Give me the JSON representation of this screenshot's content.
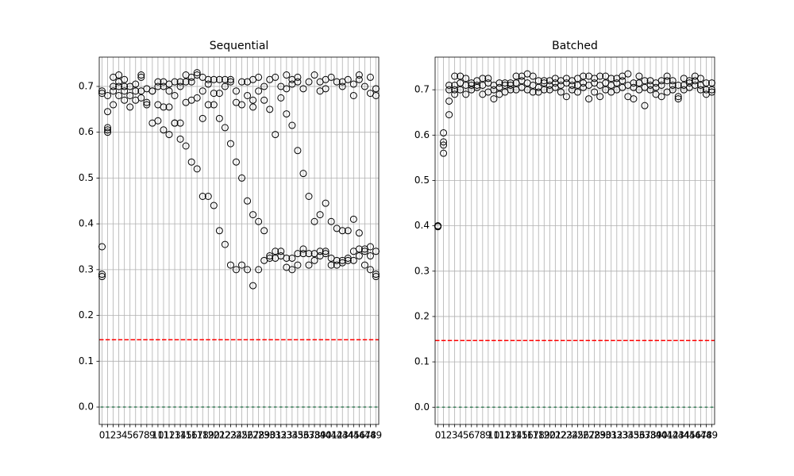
{
  "chart_data": [
    {
      "type": "box",
      "title": "Sequential",
      "categories": [
        "0",
        "1",
        "2",
        "3",
        "4",
        "5",
        "6",
        "7",
        "8",
        "9",
        "10",
        "11",
        "12",
        "13",
        "14",
        "15",
        "16",
        "17",
        "18",
        "19",
        "20",
        "21",
        "22",
        "23",
        "24",
        "25",
        "26",
        "27",
        "28",
        "29",
        "30",
        "31",
        "32",
        "33",
        "34",
        "35",
        "36",
        "37",
        "38",
        "39",
        "40",
        "41",
        "42",
        "43",
        "44",
        "45",
        "46",
        "47",
        "48",
        "49"
      ],
      "medians": [
        0,
        0,
        0,
        0,
        0,
        0,
        0,
        0,
        0,
        0,
        0,
        0,
        0,
        0,
        0,
        0,
        0,
        0,
        0,
        0,
        0,
        0,
        0,
        0,
        0,
        0,
        0,
        0,
        0,
        0,
        0,
        0,
        0,
        0,
        0,
        0,
        0,
        0,
        0,
        0,
        0,
        0,
        0,
        0,
        0,
        0,
        0,
        0,
        0,
        0
      ],
      "fliers": [
        [
          0.35,
          0.29,
          0.285,
          0.69,
          0.685
        ],
        [
          0.6,
          0.61,
          0.605,
          0.645,
          0.68
        ],
        [
          0.66,
          0.69,
          0.72,
          0.7
        ],
        [
          0.68,
          0.7,
          0.725,
          0.71
        ],
        [
          0.67,
          0.69,
          0.7,
          0.715
        ],
        [
          0.655,
          0.68,
          0.7
        ],
        [
          0.67,
          0.69,
          0.705
        ],
        [
          0.675,
          0.72,
          0.725,
          0.69
        ],
        [
          0.66,
          0.665,
          0.695
        ],
        [
          0.62,
          0.69,
          0.69
        ],
        [
          0.625,
          0.66,
          0.7,
          0.71
        ],
        [
          0.605,
          0.655,
          0.7,
          0.71
        ],
        [
          0.595,
          0.655,
          0.69,
          0.705
        ],
        [
          0.62,
          0.62,
          0.68,
          0.71
        ],
        [
          0.585,
          0.62,
          0.7,
          0.71
        ],
        [
          0.57,
          0.665,
          0.71,
          0.725
        ],
        [
          0.535,
          0.67,
          0.71,
          0.72
        ],
        [
          0.52,
          0.675,
          0.725,
          0.73
        ],
        [
          0.46,
          0.63,
          0.69,
          0.72
        ],
        [
          0.46,
          0.66,
          0.705,
          0.715
        ],
        [
          0.44,
          0.66,
          0.685,
          0.715
        ],
        [
          0.385,
          0.63,
          0.685,
          0.715
        ],
        [
          0.355,
          0.61,
          0.7,
          0.715
        ],
        [
          0.31,
          0.575,
          0.71,
          0.715
        ],
        [
          0.3,
          0.535,
          0.665,
          0.69
        ],
        [
          0.31,
          0.5,
          0.66,
          0.71
        ],
        [
          0.3,
          0.45,
          0.68,
          0.71
        ],
        [
          0.265,
          0.42,
          0.655,
          0.67,
          0.715
        ],
        [
          0.3,
          0.405,
          0.69,
          0.72
        ],
        [
          0.32,
          0.385,
          0.67,
          0.7
        ],
        [
          0.325,
          0.33,
          0.65,
          0.715
        ],
        [
          0.325,
          0.34,
          0.595,
          0.72
        ],
        [
          0.33,
          0.34,
          0.675,
          0.7
        ],
        [
          0.305,
          0.325,
          0.64,
          0.695,
          0.725
        ],
        [
          0.3,
          0.325,
          0.615,
          0.705,
          0.715
        ],
        [
          0.31,
          0.335,
          0.56,
          0.71,
          0.72
        ],
        [
          0.335,
          0.345,
          0.51,
          0.695
        ],
        [
          0.31,
          0.335,
          0.46,
          0.71
        ],
        [
          0.32,
          0.335,
          0.405,
          0.725
        ],
        [
          0.33,
          0.34,
          0.42,
          0.69,
          0.71
        ],
        [
          0.335,
          0.34,
          0.445,
          0.695,
          0.715
        ],
        [
          0.31,
          0.325,
          0.405,
          0.72
        ],
        [
          0.31,
          0.32,
          0.39,
          0.71
        ],
        [
          0.315,
          0.32,
          0.385,
          0.7,
          0.71
        ],
        [
          0.32,
          0.325,
          0.385,
          0.715
        ],
        [
          0.32,
          0.34,
          0.41,
          0.68,
          0.705
        ],
        [
          0.33,
          0.345,
          0.38,
          0.725,
          0.715
        ],
        [
          0.31,
          0.34,
          0.345,
          0.7
        ],
        [
          0.3,
          0.33,
          0.35,
          0.685,
          0.72
        ],
        [
          0.285,
          0.29,
          0.34,
          0.68,
          0.695
        ]
      ],
      "threshold": 0.147,
      "threshold_color": "#ff0000",
      "median_color": "#3a7f5a",
      "flier_color": "#000000",
      "ylim": [
        -0.038,
        0.764
      ],
      "yticks": [
        {
          "value": 0,
          "label": "0.0"
        },
        0.1,
        0.2,
        0.3,
        0.4,
        0.5,
        0.6,
        0.7
      ],
      "grid": true
    },
    {
      "type": "box",
      "title": "Batched",
      "categories": [
        "0",
        "1",
        "2",
        "3",
        "4",
        "5",
        "6",
        "7",
        "8",
        "9",
        "10",
        "11",
        "12",
        "13",
        "14",
        "15",
        "16",
        "17",
        "18",
        "19",
        "20",
        "21",
        "22",
        "23",
        "24",
        "25",
        "26",
        "27",
        "28",
        "29",
        "30",
        "31",
        "32",
        "33",
        "34",
        "35",
        "36",
        "37",
        "38",
        "39",
        "40",
        "41",
        "42",
        "43",
        "44",
        "45",
        "46",
        "47",
        "48",
        "49"
      ],
      "medians": [
        0,
        0,
        0,
        0,
        0,
        0,
        0,
        0,
        0,
        0,
        0,
        0,
        0,
        0,
        0,
        0,
        0,
        0,
        0,
        0,
        0,
        0,
        0,
        0,
        0,
        0,
        0,
        0,
        0,
        0,
        0,
        0,
        0,
        0,
        0,
        0,
        0,
        0,
        0,
        0,
        0,
        0,
        0,
        0,
        0,
        0,
        0,
        0,
        0,
        0
      ],
      "fliers": [
        [
          0.4,
          0.4,
          0.398
        ],
        [
          0.56,
          0.578,
          0.585,
          0.605
        ],
        [
          0.645,
          0.675,
          0.7,
          0.71
        ],
        [
          0.69,
          0.7,
          0.71,
          0.73
        ],
        [
          0.7,
          0.715,
          0.73
        ],
        [
          0.69,
          0.71,
          0.725
        ],
        [
          0.7,
          0.71,
          0.715
        ],
        [
          0.705,
          0.71,
          0.72
        ],
        [
          0.69,
          0.71,
          0.725
        ],
        [
          0.695,
          0.715,
          0.725
        ],
        [
          0.68,
          0.7,
          0.71
        ],
        [
          0.69,
          0.705,
          0.715
        ],
        [
          0.695,
          0.71,
          0.715
        ],
        [
          0.7,
          0.71,
          0.715
        ],
        [
          0.7,
          0.715,
          0.73
        ],
        [
          0.705,
          0.72,
          0.73
        ],
        [
          0.7,
          0.715,
          0.735
        ],
        [
          0.695,
          0.71,
          0.73
        ],
        [
          0.695,
          0.705,
          0.72
        ],
        [
          0.7,
          0.715,
          0.72
        ],
        [
          0.7,
          0.71,
          0.72
        ],
        [
          0.705,
          0.715,
          0.725
        ],
        [
          0.695,
          0.71,
          0.72
        ],
        [
          0.685,
          0.715,
          0.725
        ],
        [
          0.7,
          0.71,
          0.72
        ],
        [
          0.695,
          0.71,
          0.725
        ],
        [
          0.705,
          0.715,
          0.73
        ],
        [
          0.68,
          0.71,
          0.73
        ],
        [
          0.695,
          0.715,
          0.725
        ],
        [
          0.685,
          0.71,
          0.73
        ],
        [
          0.7,
          0.715,
          0.73
        ],
        [
          0.695,
          0.71,
          0.725
        ],
        [
          0.7,
          0.715,
          0.725
        ],
        [
          0.705,
          0.72,
          0.73
        ],
        [
          0.685,
          0.71,
          0.735
        ],
        [
          0.68,
          0.705,
          0.715
        ],
        [
          0.7,
          0.715,
          0.73
        ],
        [
          0.665,
          0.705,
          0.72
        ],
        [
          0.7,
          0.71,
          0.72
        ],
        [
          0.69,
          0.705,
          0.715
        ],
        [
          0.685,
          0.71,
          0.72
        ],
        [
          0.695,
          0.72,
          0.73
        ],
        [
          0.7,
          0.71,
          0.72
        ],
        [
          0.68,
          0.685,
          0.71
        ],
        [
          0.7,
          0.71,
          0.725
        ],
        [
          0.705,
          0.715,
          0.72
        ],
        [
          0.71,
          0.72,
          0.73
        ],
        [
          0.7,
          0.71,
          0.725
        ],
        [
          0.69,
          0.7,
          0.715
        ],
        [
          0.695,
          0.7,
          0.715
        ]
      ],
      "threshold": 0.147,
      "threshold_color": "#ff0000",
      "median_color": "#3a7f5a",
      "flier_color": "#000000",
      "ylim": [
        -0.038,
        0.772
      ],
      "yticks": [
        {
          "value": 0,
          "label": "0.0"
        },
        0.1,
        0.2,
        0.3,
        0.4,
        0.5,
        0.6,
        0.7
      ],
      "grid": true
    }
  ]
}
